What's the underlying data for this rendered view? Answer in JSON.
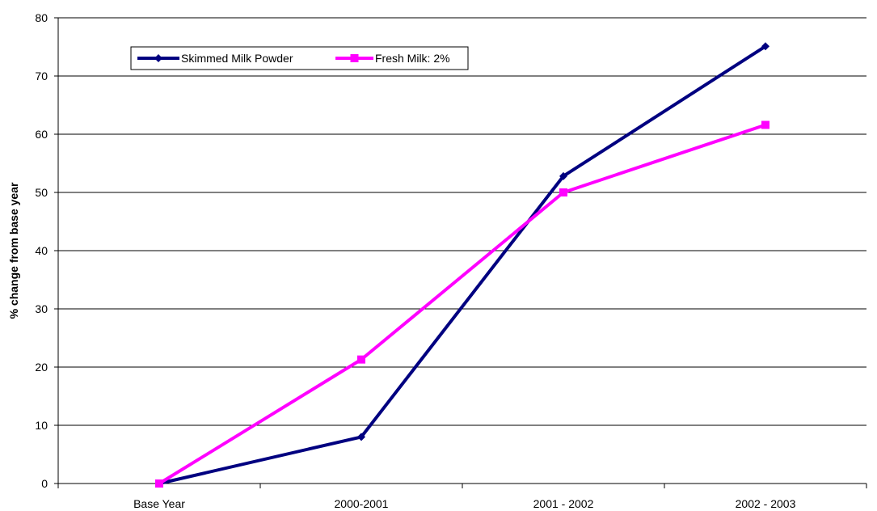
{
  "chart_data": {
    "type": "line",
    "title": "",
    "xlabel": "",
    "ylabel": "% change from base year",
    "categories": [
      "Base Year",
      "2000-2001",
      "2001 - 2002",
      "2002 - 2003"
    ],
    "ylim": [
      0,
      80
    ],
    "yticks": [
      0,
      10,
      20,
      30,
      40,
      50,
      60,
      70,
      80
    ],
    "grid": "horizontal",
    "legend_position": "top-left",
    "series": [
      {
        "name": "Skimmed Milk Powder",
        "values": [
          0,
          8,
          52.8,
          75.1
        ],
        "color": "#000080",
        "marker": "diamond"
      },
      {
        "name": "Fresh Milk: 2%",
        "values": [
          0,
          21.3,
          50,
          61.6
        ],
        "color": "#ff00ff",
        "marker": "square"
      }
    ]
  }
}
